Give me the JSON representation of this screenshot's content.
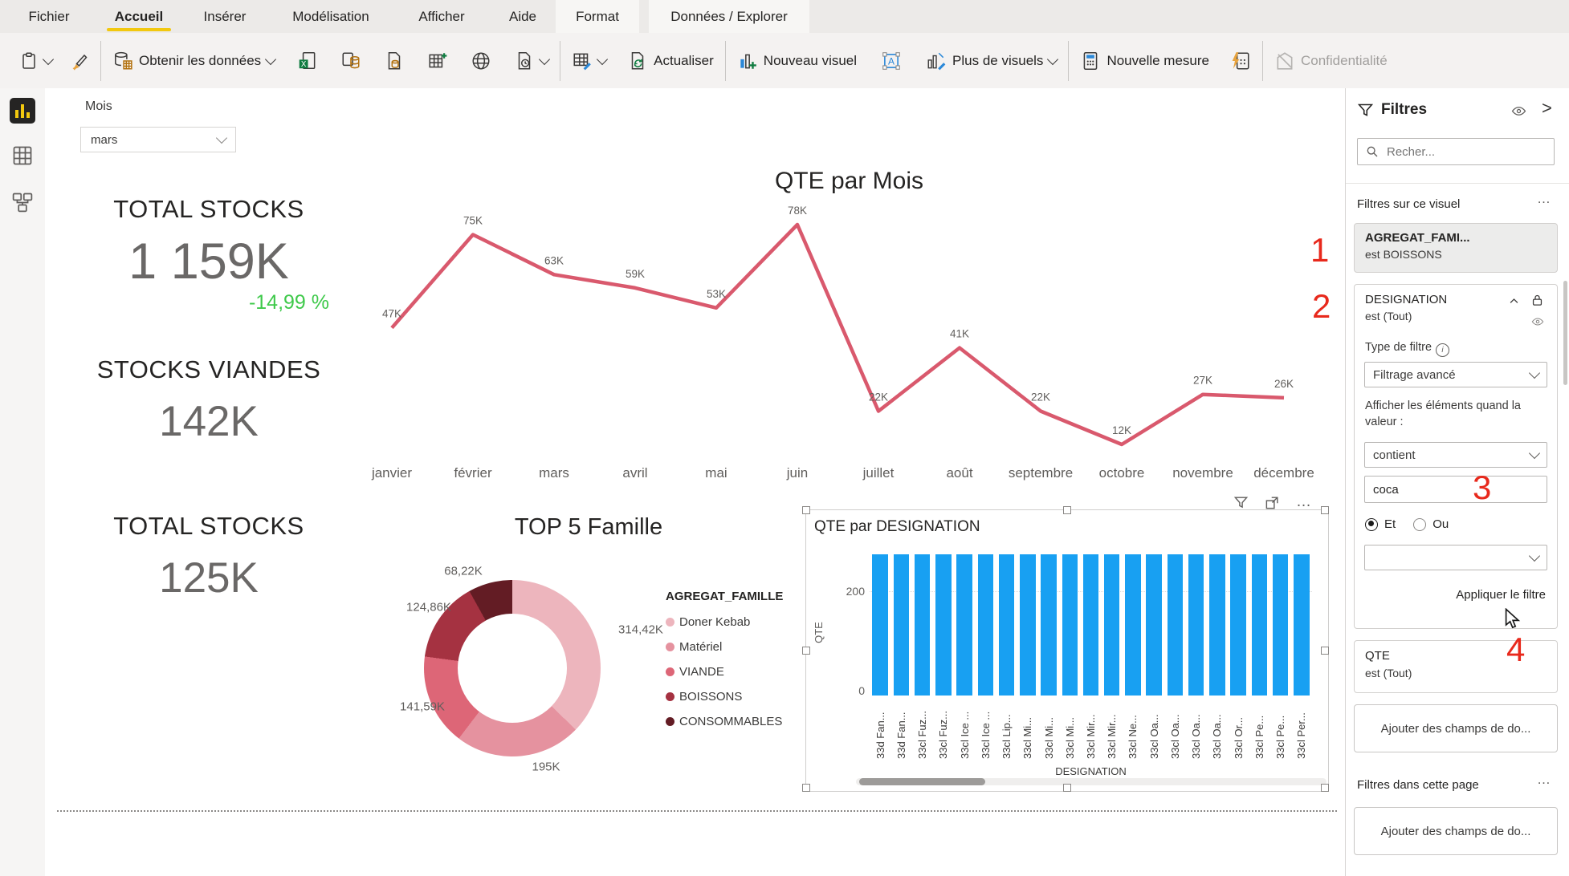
{
  "ribbon": {
    "tabs": [
      {
        "label": "Fichier"
      },
      {
        "label": "Accueil",
        "active": true
      },
      {
        "label": "Insérer"
      },
      {
        "label": "Modélisation"
      },
      {
        "label": "Afficher"
      },
      {
        "label": "Aide"
      },
      {
        "label": "Format",
        "contextual": true
      },
      {
        "label": "Données / Explorer",
        "contextual": true
      }
    ],
    "toolbar": {
      "get_data": "Obtenir les données",
      "refresh": "Actualiser",
      "new_visual": "Nouveau visuel",
      "more_visuals": "Plus de visuels",
      "new_measure": "Nouvelle mesure",
      "sensitivity": "Confidentialité"
    }
  },
  "canvas": {
    "slicer": {
      "label": "Mois",
      "value": "mars"
    },
    "kpis": [
      {
        "title": "TOTAL STOCKS",
        "value": "1 159K",
        "delta": "-14,99 %",
        "delta_color": "#3ec94a"
      },
      {
        "title": "STOCKS VIANDES",
        "value": "142K"
      },
      {
        "title": "TOTAL STOCKS",
        "value": "125K"
      }
    ]
  },
  "chart_data": [
    {
      "type": "line",
      "title": "QTE par Mois",
      "x": [
        "janvier",
        "février",
        "mars",
        "avril",
        "mai",
        "juin",
        "juillet",
        "août",
        "septembre",
        "octobre",
        "novembre",
        "décembre"
      ],
      "values": [
        47,
        75,
        63,
        59,
        53,
        78,
        22,
        41,
        22,
        12,
        27,
        26
      ],
      "point_labels": [
        "47K",
        "75K",
        "63K",
        "59K",
        "53K",
        "78K",
        "22K",
        "41K",
        "22K",
        "12K",
        "27K",
        "26K"
      ],
      "series_name": "QTE",
      "line_color": "#d9596d",
      "grid": false,
      "legend": "none",
      "ylim": [
        0,
        85
      ]
    },
    {
      "type": "pie",
      "donut": true,
      "title": "TOP 5 Famille",
      "legend_title": "AGREGAT_FAMILLE",
      "legend_position": "right",
      "slices": [
        {
          "name": "Doner Kebab",
          "value": 314.42,
          "label": "314,42K",
          "color": "#edb5bd"
        },
        {
          "name": "Matériel",
          "value": 195.0,
          "label": "195K",
          "color": "#e5929f"
        },
        {
          "name": "VIANDE",
          "value": 141.59,
          "label": "141,59K",
          "color": "#dd6677"
        },
        {
          "name": "BOISSONS",
          "value": 124.86,
          "label": "124,86K",
          "color": "#a53241"
        },
        {
          "name": "CONSOMMABLES",
          "value": 68.22,
          "label": "68,22K",
          "color": "#631c24"
        }
      ]
    },
    {
      "type": "bar",
      "title": "QTE par DESIGNATION",
      "xlabel": "DESIGNATION",
      "ylabel": "QTE",
      "yticks": [
        0,
        200
      ],
      "ylim": [
        0,
        290
      ],
      "bar_color": "#18a0f2",
      "categories": [
        "33d Fan...",
        "33d Fan...",
        "33cl Fuz...",
        "33cl Fuz...",
        "33cl Ice ...",
        "33cl Ice ...",
        "33cl Lip...",
        "33cl Mi...",
        "33cl Mi...",
        "33cl Mi...",
        "33cl Mir...",
        "33cl Mir...",
        "33cl Ne...",
        "33cl Oa...",
        "33cl Oa...",
        "33cl Oa...",
        "33cl Oa...",
        "33cl Or...",
        "33cl Pe...",
        "33cl Pe...",
        "33cl Per..."
      ],
      "values": [
        284,
        284,
        284,
        284,
        284,
        284,
        284,
        284,
        284,
        284,
        284,
        284,
        284,
        284,
        284,
        284,
        284,
        284,
        284,
        284,
        284
      ]
    }
  ],
  "filters_panel": {
    "title": "Filtres",
    "search_placeholder": "Recher...",
    "section_visual": "Filtres sur ce visuel",
    "ellipsis": "…",
    "cards": [
      {
        "field": "AGREGAT_FAMI...",
        "condition": "est BOISSONS"
      },
      {
        "field": "DESIGNATION",
        "condition": "est (Tout)",
        "filter_type_label": "Type de filtre",
        "filter_type_value": "Filtrage avancé",
        "show_items_label": "Afficher les éléments quand la valeur :",
        "operator_value": "contient",
        "value_input": "coca",
        "radio_and": "Et",
        "radio_or": "Ou",
        "apply_label": "Appliquer le filtre"
      },
      {
        "field": "QTE",
        "condition": "est (Tout)"
      }
    ],
    "add_fields_button": "Ajouter des champs de do...",
    "section_page": "Filtres dans cette page",
    "add_fields_button2": "Ajouter des champs de do..."
  },
  "annotations": {
    "n1": "1",
    "n2": "2",
    "n3": "3",
    "n4": "4",
    "color": "#e8291c"
  }
}
